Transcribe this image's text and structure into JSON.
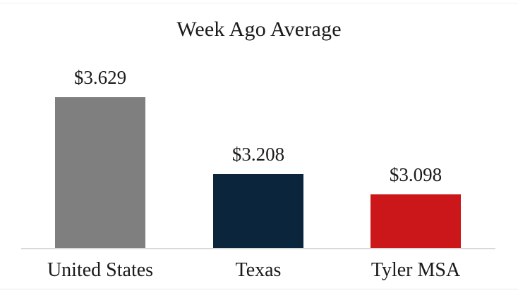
{
  "title": "Week Ago Average",
  "colors": {
    "text": "#1a1a1a",
    "background": "#ffffff",
    "axis_line": "#d9d9d9",
    "hairline_top": "#f2f2f2",
    "hairline_bottom": "#e8e8e8"
  },
  "chart_data": {
    "type": "bar",
    "title": "Week Ago Average",
    "categories": [
      "United States",
      "Texas",
      "Tyler MSA"
    ],
    "values": [
      3.629,
      3.208,
      3.098
    ],
    "value_labels": [
      "$3.629",
      "$3.208",
      "$3.098"
    ],
    "bar_colors": [
      "#7f7f7f",
      "#0a253c",
      "#cb1719"
    ],
    "xlabel": "",
    "ylabel": "",
    "ylim": [
      2.795,
      3.68
    ],
    "grid": false,
    "legend": false,
    "value_labels_position": "above-bars",
    "axis_ticks_visible": false
  }
}
